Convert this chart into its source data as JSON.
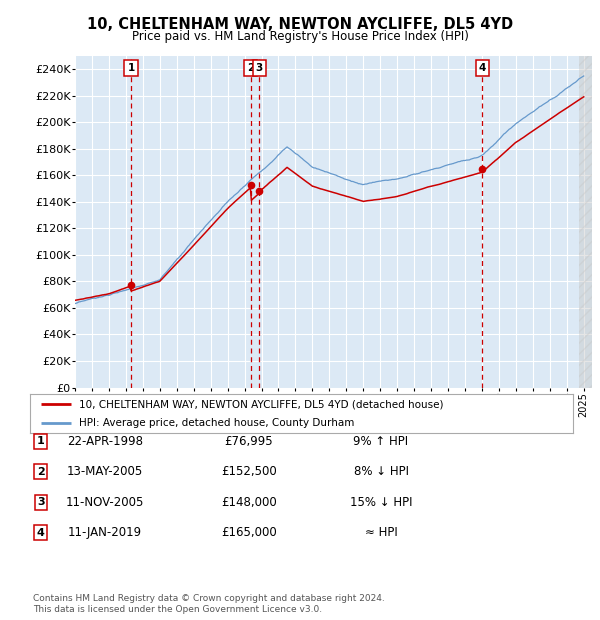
{
  "title": "10, CHELTENHAM WAY, NEWTON AYCLIFFE, DL5 4YD",
  "subtitle": "Price paid vs. HM Land Registry's House Price Index (HPI)",
  "ylim": [
    0,
    250000
  ],
  "yticks": [
    0,
    20000,
    40000,
    60000,
    80000,
    100000,
    120000,
    140000,
    160000,
    180000,
    200000,
    220000,
    240000
  ],
  "ytick_labels": [
    "£0",
    "£20K",
    "£40K",
    "£60K",
    "£80K",
    "£100K",
    "£120K",
    "£140K",
    "£160K",
    "£180K",
    "£200K",
    "£220K",
    "£240K"
  ],
  "xlim": [
    1995,
    2025.5
  ],
  "bg_color": "#dce9f5",
  "grid_color": "#ffffff",
  "red_line_color": "#cc0000",
  "blue_line_color": "#6699cc",
  "vline_color": "#cc0000",
  "transactions": [
    {
      "num": 1,
      "date": "22-APR-1998",
      "price": 76995,
      "year": 1998.3
    },
    {
      "num": 2,
      "date": "13-MAY-2005",
      "price": 152500,
      "year": 2005.37
    },
    {
      "num": 3,
      "date": "11-NOV-2005",
      "price": 148000,
      "year": 2005.86
    },
    {
      "num": 4,
      "date": "11-JAN-2019",
      "price": 165000,
      "year": 2019.03
    }
  ],
  "legend_line1": "10, CHELTENHAM WAY, NEWTON AYCLIFFE, DL5 4YD (detached house)",
  "legend_line2": "HPI: Average price, detached house, County Durham",
  "footer1": "Contains HM Land Registry data © Crown copyright and database right 2024.",
  "footer2": "This data is licensed under the Open Government Licence v3.0.",
  "table_rows": [
    {
      "num": 1,
      "date": "22-APR-1998",
      "price": "£76,995",
      "hpi": "9% ↑ HPI"
    },
    {
      "num": 2,
      "date": "13-MAY-2005",
      "price": "£152,500",
      "hpi": "8% ↓ HPI"
    },
    {
      "num": 3,
      "date": "11-NOV-2005",
      "price": "£148,000",
      "hpi": "15% ↓ HPI"
    },
    {
      "num": 4,
      "date": "11-JAN-2019",
      "price": "£165,000",
      "hpi": "≈ HPI"
    }
  ]
}
